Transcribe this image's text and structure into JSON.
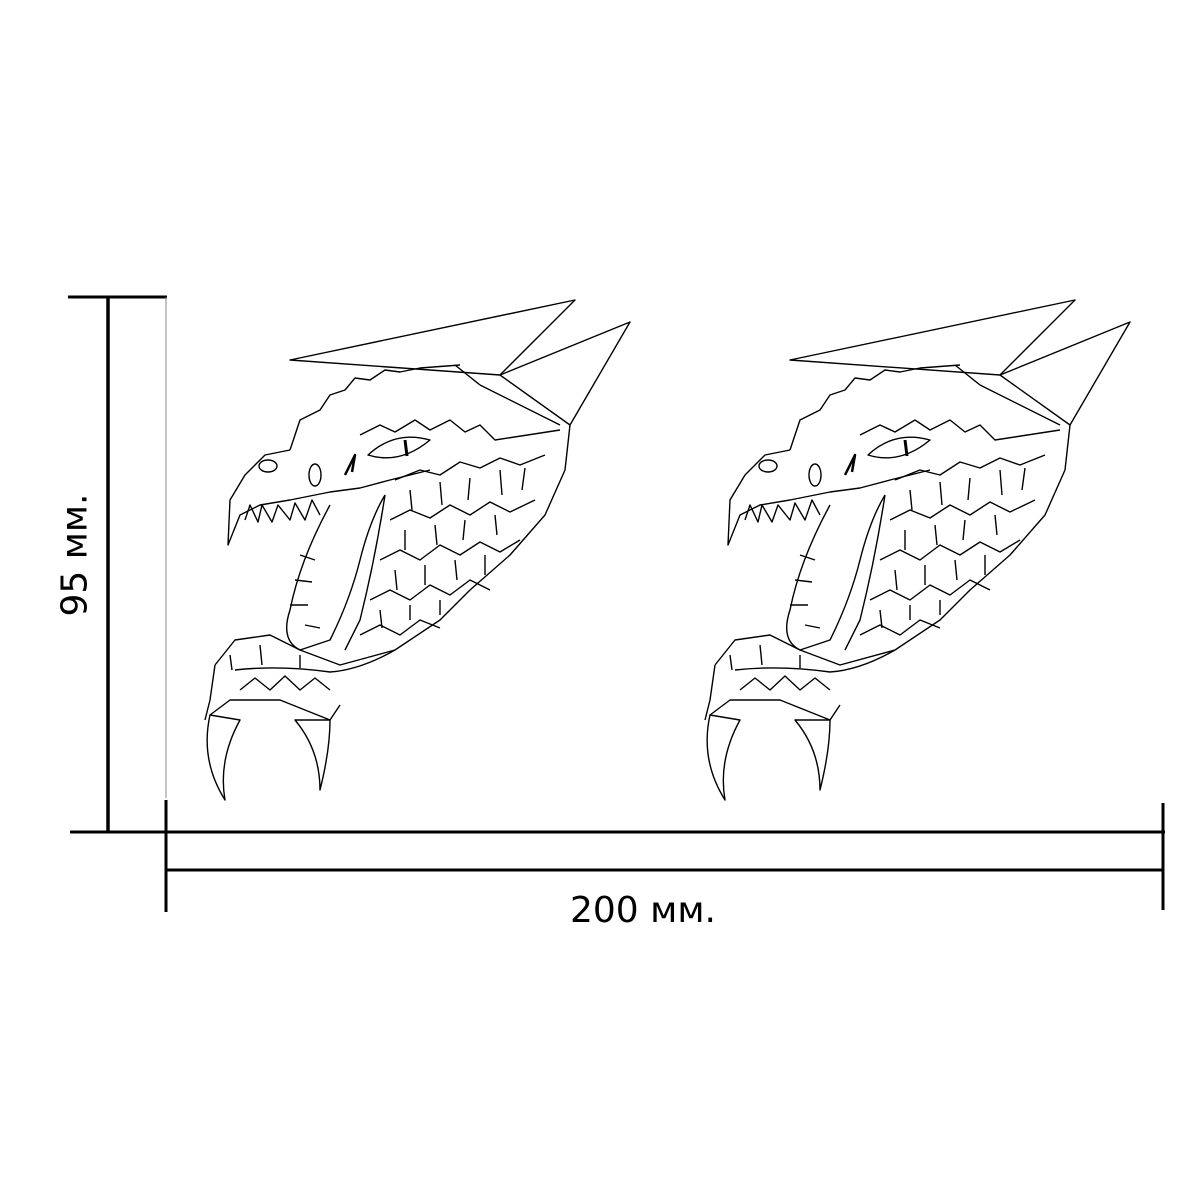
{
  "dimensions": {
    "width_label": "200 мм.",
    "height_label": "95 мм."
  },
  "artwork": {
    "subject": "dragon-head-outline",
    "count": 2,
    "line_color": "#000000",
    "background": "#ffffff"
  }
}
